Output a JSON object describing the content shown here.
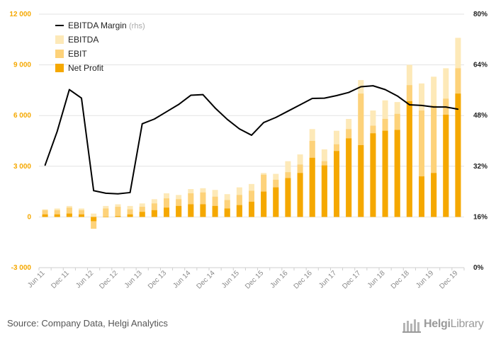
{
  "chart_data": {
    "type": "bar",
    "title": "",
    "categories": [
      "Jun 11",
      "Sep 11",
      "Dec 11",
      "Mar 12",
      "Jun 12",
      "Sep 12",
      "Dec 12",
      "Mar 13",
      "Jun 13",
      "Sep 13",
      "Dec 13",
      "Mar 14",
      "Jun 14",
      "Sep 14",
      "Dec 14",
      "Mar 15",
      "Jun 15",
      "Sep 15",
      "Dec 15",
      "Mar 16",
      "Jun 16",
      "Sep 16",
      "Dec 16",
      "Mar 17",
      "Jun 17",
      "Sep 17",
      "Dec 17",
      "Mar 18",
      "Jun 18",
      "Sep 18",
      "Dec 18",
      "Mar 19",
      "Jun 19",
      "Sep 19",
      "Dec 19"
    ],
    "x_tick_labels": [
      "Jun 11",
      "Dec 11",
      "Jun 12",
      "Dec 12",
      "Jun 13",
      "Dec 13",
      "Jun 14",
      "Dec 14",
      "Jun 15",
      "Dec 15",
      "Jun 16",
      "Dec 16",
      "Jun 17",
      "Dec 17",
      "Jun 18",
      "Dec 18",
      "Jun 19",
      "Dec 19"
    ],
    "series": [
      {
        "name": "EBITDA",
        "axis": "left",
        "color": "#fde9b8",
        "values": [
          450,
          500,
          650,
          500,
          200,
          650,
          750,
          650,
          800,
          1050,
          1400,
          1300,
          1650,
          1700,
          1600,
          1350,
          1750,
          1950,
          2600,
          2550,
          3300,
          3700,
          5200,
          4000,
          5100,
          5800,
          8100,
          6300,
          6900,
          6800,
          9000,
          7900,
          8300,
          8800,
          10600
        ]
      },
      {
        "name": "EBIT",
        "axis": "left",
        "color": "#fdd27a",
        "values": [
          400,
          400,
          550,
          400,
          -700,
          500,
          600,
          450,
          600,
          800,
          1100,
          1050,
          1400,
          1450,
          1200,
          1000,
          1300,
          1550,
          2500,
          2200,
          2650,
          3100,
          4500,
          3300,
          4300,
          5200,
          7300,
          5400,
          5800,
          6100,
          7800,
          6300,
          6600,
          7000,
          8800
        ]
      },
      {
        "name": "Net Profit",
        "axis": "left",
        "color": "#f5a800",
        "values": [
          150,
          150,
          200,
          150,
          -250,
          0,
          50,
          150,
          300,
          400,
          550,
          650,
          750,
          750,
          650,
          500,
          700,
          900,
          1500,
          1750,
          2300,
          2600,
          3500,
          3050,
          3900,
          4650,
          4250,
          4950,
          5100,
          5150,
          6850,
          2400,
          2600,
          6050,
          7300
        ]
      },
      {
        "name": "EBITDA Margin",
        "axis": "right",
        "color": "#000000",
        "values": [
          32.3,
          43.0,
          56.2,
          53.5,
          24.3,
          23.5,
          23.3,
          23.7,
          45.4,
          46.9,
          49.2,
          51.5,
          54.4,
          54.6,
          50.4,
          46.8,
          43.8,
          41.8,
          45.8,
          47.4,
          49.4,
          51.4,
          53.4,
          53.5,
          54.3,
          55.3,
          57.1,
          57.4,
          56.2,
          54.2,
          51.4,
          51.2,
          50.7,
          50.7,
          50.0
        ]
      }
    ],
    "y_left": {
      "min": -3000,
      "max": 12000,
      "ticks": [
        -3000,
        0,
        3000,
        6000,
        9000,
        12000
      ],
      "tick_labels": [
        "-3 000",
        "0",
        "3 000",
        "6 000",
        "9 000",
        "12 000"
      ]
    },
    "y_right": {
      "min": 0,
      "max": 80,
      "ticks": [
        0,
        16,
        32,
        48,
        64,
        80
      ],
      "tick_labels": [
        "0%",
        "16%",
        "32%",
        "48%",
        "64%",
        "80%"
      ]
    },
    "legend": {
      "position": "top-left",
      "items": [
        {
          "label": "EBITDA Margin",
          "sub": "(rhs)",
          "kind": "line",
          "color": "#000000"
        },
        {
          "label": "EBITDA",
          "kind": "box",
          "color": "#fde9b8"
        },
        {
          "label": "EBIT",
          "kind": "box",
          "color": "#fdd27a"
        },
        {
          "label": "Net Profit",
          "kind": "box",
          "color": "#f5a800"
        }
      ]
    },
    "grid": true
  },
  "footer": {
    "source": "Source: Company Data, Helgi Analytics",
    "logo_bold": "Helgi",
    "logo_light": "Library"
  }
}
